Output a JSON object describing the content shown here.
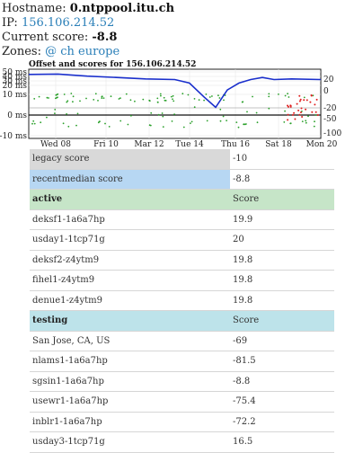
{
  "info": {
    "hostname_label": "Hostname:",
    "hostname": "0.ntppool.itu.ch",
    "ip_label": "IP:",
    "ip": "156.106.214.52",
    "score_label": "Current score:",
    "score": "-8.8",
    "zones_label": "Zones:",
    "zones": "@ ch europe"
  },
  "chart_data": {
    "type": "scatter",
    "title": "Offset and scores for 156.106.214.52",
    "left_ticks": [
      "50 ms",
      "40 ms",
      "30 ms",
      "20 ms",
      "10 ms",
      "0 ms",
      "-10 ms"
    ],
    "right_ticks": [
      "20",
      "0",
      "-20",
      "-50",
      "-100"
    ],
    "x_ticks": [
      "Wed 08",
      "Fri 10",
      "Mar 12",
      "Tue 14",
      "Thu 16",
      "Sat 18",
      "Mon 20"
    ],
    "score_line": [
      [
        0,
        0.925
      ],
      [
        0.1,
        0.93
      ],
      [
        0.2,
        0.9
      ],
      [
        0.3,
        0.88
      ],
      [
        0.4,
        0.86
      ],
      [
        0.5,
        0.85
      ],
      [
        0.55,
        0.8
      ],
      [
        0.6,
        0.6
      ],
      [
        0.64,
        0.45
      ],
      [
        0.68,
        0.7
      ],
      [
        0.72,
        0.8
      ],
      [
        0.76,
        0.85
      ],
      [
        0.8,
        0.88
      ],
      [
        0.84,
        0.85
      ],
      [
        0.9,
        0.86
      ],
      [
        1,
        0.85
      ]
    ],
    "colors": {
      "score_line": "#1a2fcc",
      "offset_points": "#2aa02a",
      "bad_points": "#e02020",
      "zero_line": "#111111"
    }
  },
  "table": {
    "summary": [
      {
        "name": "legacy score",
        "value": "-10",
        "type": "legacy"
      },
      {
        "name": "recentmedian score",
        "value": "-8.8",
        "type": "recent"
      }
    ],
    "active": {
      "header": "active",
      "col": "Score",
      "rows": [
        {
          "name": "deksf1-1a6a7hp",
          "score": "19.9"
        },
        {
          "name": "usday1-1tcp71g",
          "score": "20"
        },
        {
          "name": "deksf2-z4ytm9",
          "score": "19.8"
        },
        {
          "name": "fihel1-z4ytm9",
          "score": "19.8"
        },
        {
          "name": "denue1-z4ytm9",
          "score": "19.8"
        }
      ]
    },
    "testing": {
      "header": "testing",
      "col": "Score",
      "rows": [
        {
          "name": "San Jose, CA, US",
          "score": "-69"
        },
        {
          "name": "nlams1-1a6a7hp",
          "score": "-81.5"
        },
        {
          "name": "sgsin1-1a6a7hp",
          "score": "-8.8"
        },
        {
          "name": "usewr1-1a6a7hp",
          "score": "-75.4"
        },
        {
          "name": "inblr1-1a6a7hp",
          "score": "-72.2"
        },
        {
          "name": "usday3-1tcp71g",
          "score": "16.5"
        }
      ]
    }
  }
}
